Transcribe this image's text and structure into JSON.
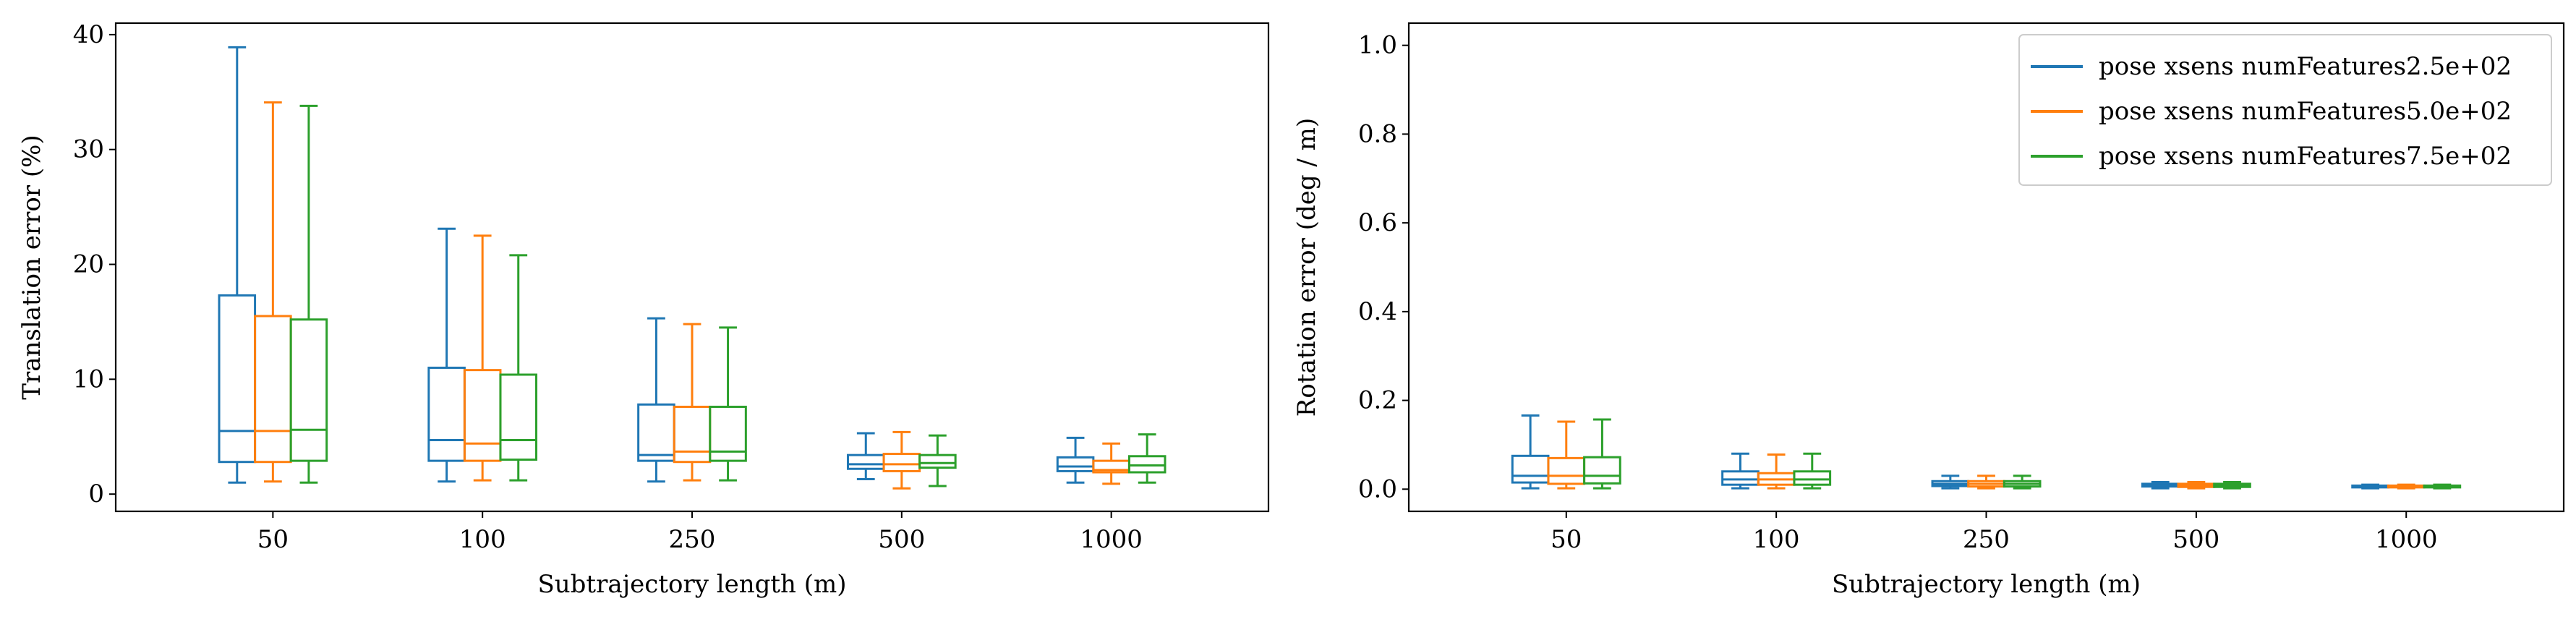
{
  "chart_data": [
    {
      "type": "boxplot",
      "xlabel": "Subtrajectory length (m)",
      "ylabel": "Translation error (%)",
      "categories": [
        "50",
        "100",
        "250",
        "500",
        "1000"
      ],
      "ylim": [
        -1.5,
        41
      ],
      "yticks": [
        0,
        10,
        20,
        30,
        40
      ],
      "grid": false,
      "series": [
        {
          "name": "pose xsens numFeatures2.5e+02",
          "color": "#1f77b4",
          "boxes": [
            {
              "whislo": 1.0,
              "q1": 2.8,
              "med": 5.5,
              "q3": 17.3,
              "whishi": 38.9
            },
            {
              "whislo": 1.1,
              "q1": 2.9,
              "med": 4.7,
              "q3": 11.0,
              "whishi": 23.1
            },
            {
              "whislo": 1.1,
              "q1": 2.9,
              "med": 3.4,
              "q3": 7.8,
              "whishi": 15.3
            },
            {
              "whislo": 1.3,
              "q1": 2.2,
              "med": 2.6,
              "q3": 3.4,
              "whishi": 5.3
            },
            {
              "whislo": 1.0,
              "q1": 2.0,
              "med": 2.4,
              "q3": 3.2,
              "whishi": 4.9
            }
          ]
        },
        {
          "name": "pose xsens numFeatures5.0e+02",
          "color": "#ff7f0e",
          "boxes": [
            {
              "whislo": 1.1,
              "q1": 2.8,
              "med": 5.5,
              "q3": 15.5,
              "whishi": 34.1
            },
            {
              "whislo": 1.2,
              "q1": 2.9,
              "med": 4.4,
              "q3": 10.8,
              "whishi": 22.5
            },
            {
              "whislo": 1.2,
              "q1": 2.8,
              "med": 3.7,
              "q3": 7.6,
              "whishi": 14.8
            },
            {
              "whislo": 0.5,
              "q1": 2.0,
              "med": 2.6,
              "q3": 3.5,
              "whishi": 5.4
            },
            {
              "whislo": 0.9,
              "q1": 1.9,
              "med": 2.1,
              "q3": 2.9,
              "whishi": 4.4
            }
          ]
        },
        {
          "name": "pose xsens numFeatures7.5e+02",
          "color": "#2ca02c",
          "boxes": [
            {
              "whislo": 1.0,
              "q1": 2.9,
              "med": 5.6,
              "q3": 15.2,
              "whishi": 33.8
            },
            {
              "whislo": 1.2,
              "q1": 3.0,
              "med": 4.7,
              "q3": 10.4,
              "whishi": 20.8
            },
            {
              "whislo": 1.2,
              "q1": 2.9,
              "med": 3.7,
              "q3": 7.6,
              "whishi": 14.5
            },
            {
              "whislo": 0.7,
              "q1": 2.3,
              "med": 2.7,
              "q3": 3.4,
              "whishi": 5.1
            },
            {
              "whislo": 1.0,
              "q1": 1.9,
              "med": 2.5,
              "q3": 3.3,
              "whishi": 5.2
            }
          ]
        }
      ]
    },
    {
      "type": "boxplot",
      "xlabel": "Subtrajectory length (m)",
      "ylabel": "Rotation error (deg / m)",
      "categories": [
        "50",
        "100",
        "250",
        "500",
        "1000"
      ],
      "ylim": [
        -0.05,
        1.05
      ],
      "yticks": [
        0.0,
        0.2,
        0.4,
        0.6,
        0.8,
        1.0
      ],
      "ytick_labels": [
        "0.0",
        "0.2",
        "0.4",
        "0.6",
        "0.8",
        "1.0"
      ],
      "grid": false,
      "legend_position": "top-right",
      "series": [
        {
          "name": "pose xsens numFeatures2.5e+02",
          "color": "#1f77b4",
          "boxes": [
            {
              "whislo": 0.002,
              "q1": 0.015,
              "med": 0.03,
              "q3": 0.075,
              "whishi": 0.166
            },
            {
              "whislo": 0.002,
              "q1": 0.01,
              "med": 0.022,
              "q3": 0.04,
              "whishi": 0.08
            },
            {
              "whislo": 0.002,
              "q1": 0.007,
              "med": 0.012,
              "q3": 0.018,
              "whishi": 0.03
            },
            {
              "whislo": 0.002,
              "q1": 0.006,
              "med": 0.009,
              "q3": 0.012,
              "whishi": 0.016
            },
            {
              "whislo": 0.002,
              "q1": 0.004,
              "med": 0.006,
              "q3": 0.008,
              "whishi": 0.01
            }
          ]
        },
        {
          "name": "pose xsens numFeatures5.0e+02",
          "color": "#ff7f0e",
          "boxes": [
            {
              "whislo": 0.002,
              "q1": 0.012,
              "med": 0.03,
              "q3": 0.07,
              "whishi": 0.152
            },
            {
              "whislo": 0.002,
              "q1": 0.01,
              "med": 0.022,
              "q3": 0.036,
              "whishi": 0.078
            },
            {
              "whislo": 0.002,
              "q1": 0.006,
              "med": 0.012,
              "q3": 0.018,
              "whishi": 0.03
            },
            {
              "whislo": 0.002,
              "q1": 0.005,
              "med": 0.009,
              "q3": 0.012,
              "whishi": 0.016
            },
            {
              "whislo": 0.002,
              "q1": 0.004,
              "med": 0.006,
              "q3": 0.008,
              "whishi": 0.01
            }
          ]
        },
        {
          "name": "pose xsens numFeatures7.5e+02",
          "color": "#2ca02c",
          "boxes": [
            {
              "whislo": 0.002,
              "q1": 0.013,
              "med": 0.03,
              "q3": 0.072,
              "whishi": 0.157
            },
            {
              "whislo": 0.002,
              "q1": 0.01,
              "med": 0.022,
              "q3": 0.04,
              "whishi": 0.08
            },
            {
              "whislo": 0.002,
              "q1": 0.006,
              "med": 0.012,
              "q3": 0.018,
              "whishi": 0.03
            },
            {
              "whislo": 0.002,
              "q1": 0.005,
              "med": 0.009,
              "q3": 0.012,
              "whishi": 0.016
            },
            {
              "whislo": 0.002,
              "q1": 0.004,
              "med": 0.006,
              "q3": 0.008,
              "whishi": 0.01
            }
          ]
        }
      ]
    }
  ]
}
